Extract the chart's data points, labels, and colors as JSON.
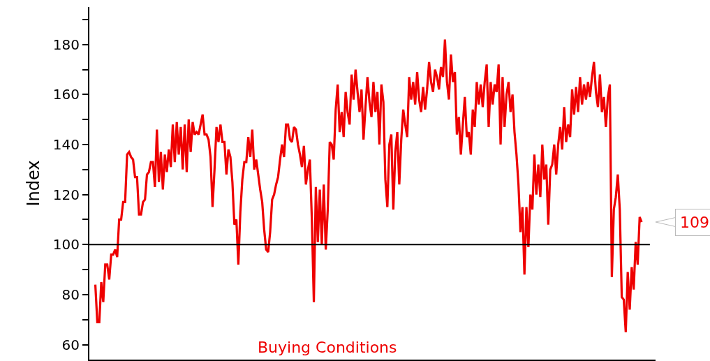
{
  "chart_data": {
    "type": "line",
    "ylabel": "Index",
    "ylim": [
      54,
      195
    ],
    "yticks": [
      {
        "value": 60,
        "label": "60"
      },
      {
        "value": 70,
        "label": null
      },
      {
        "value": 80,
        "label": "80"
      },
      {
        "value": 90,
        "label": null
      },
      {
        "value": 100,
        "label": "100"
      },
      {
        "value": 110,
        "label": null
      },
      {
        "value": 120,
        "label": "120"
      },
      {
        "value": 130,
        "label": null
      },
      {
        "value": 140,
        "label": "140"
      },
      {
        "value": 150,
        "label": null
      },
      {
        "value": 160,
        "label": "160"
      },
      {
        "value": 170,
        "label": null
      },
      {
        "value": 180,
        "label": "180"
      },
      {
        "value": 190,
        "label": null
      }
    ],
    "tick_labels": "y",
    "legend": false,
    "marker": "none",
    "line_style": "solid",
    "ref_lines": [
      {
        "axis": "y",
        "value": 100,
        "color": "#000000"
      }
    ],
    "annotations": [
      "109"
    ],
    "categories": [
      null,
      null,
      null,
      null,
      null,
      null,
      null,
      null,
      null,
      null,
      null,
      null,
      null,
      null,
      null,
      null,
      null,
      null,
      null,
      null,
      null,
      null,
      null,
      null,
      null,
      null,
      null,
      null,
      null,
      null,
      null,
      null,
      null,
      null,
      null,
      null,
      null,
      null,
      null,
      null,
      null,
      null,
      null,
      null,
      null,
      null,
      null,
      null,
      null,
      null,
      null,
      null,
      null,
      null,
      null,
      null,
      null,
      null,
      null,
      null,
      null,
      null,
      null,
      null,
      null,
      null,
      null,
      null,
      null,
      null,
      null,
      null,
      null,
      null,
      null,
      null,
      null,
      null,
      null,
      null,
      null,
      null,
      null,
      null,
      null,
      null,
      null,
      null,
      null,
      null,
      null,
      null,
      null,
      null,
      null,
      null,
      null,
      null,
      null,
      null,
      null,
      null,
      null,
      null,
      null,
      null,
      null,
      null,
      null,
      null,
      null,
      null,
      null,
      null,
      null,
      null,
      null,
      null,
      null,
      null,
      null,
      null,
      null,
      null,
      null,
      null,
      null,
      null,
      null,
      null,
      null,
      null,
      null,
      null,
      null,
      null,
      null,
      null,
      null,
      null,
      null,
      null,
      null,
      null,
      null,
      null,
      null,
      null,
      null,
      null,
      null,
      null,
      null,
      null,
      null,
      null,
      null,
      null,
      null,
      null,
      null,
      null,
      null,
      null,
      null,
      null,
      null,
      null,
      null,
      null,
      null,
      null,
      null,
      null,
      null,
      null,
      null,
      null,
      null,
      null,
      null,
      null,
      null,
      null,
      null,
      null,
      null,
      null,
      null,
      null,
      null,
      null,
      null,
      null,
      null,
      null,
      null,
      null,
      null,
      null,
      null,
      null,
      null,
      null,
      null,
      null,
      null,
      null,
      null,
      null,
      null,
      null,
      null,
      null,
      null,
      null,
      null,
      null,
      null,
      null,
      null,
      null,
      null,
      null,
      null,
      null,
      null,
      null,
      null,
      null,
      null,
      null,
      null,
      null,
      null,
      null,
      null,
      null,
      null,
      null,
      null,
      null,
      null,
      null,
      null,
      null,
      null,
      null,
      null,
      null,
      null,
      null,
      null,
      null,
      null,
      null,
      null,
      null,
      null,
      null,
      null,
      null,
      null,
      null,
      null,
      null,
      null,
      null,
      null,
      null,
      null,
      null,
      null,
      null,
      null,
      null
    ],
    "series": [
      {
        "name": "Buying Conditions",
        "color": "#ee0000",
        "values": [
          84,
          69,
          69,
          85,
          77,
          92,
          92,
          86,
          96,
          96,
          98,
          95,
          110,
          110,
          117,
          117,
          136,
          137,
          135,
          134,
          127,
          127,
          112,
          112,
          117,
          118,
          128,
          129,
          133,
          133,
          123,
          146,
          125,
          137,
          122,
          136,
          129,
          138,
          131,
          148,
          133,
          149,
          136,
          147,
          130,
          148,
          129,
          150,
          137,
          149,
          144,
          145,
          144,
          148,
          152,
          144,
          144,
          142,
          135,
          115,
          130,
          147,
          141,
          148,
          141,
          141,
          128,
          138,
          135,
          125,
          108,
          110,
          92,
          113,
          126,
          133,
          133,
          143,
          135,
          146,
          130,
          134,
          128,
          122,
          117,
          106,
          98,
          97,
          105,
          118,
          120,
          124,
          127,
          134,
          140,
          135,
          148,
          148,
          142,
          141,
          147,
          146,
          140,
          136,
          131,
          139.5,
          124,
          130,
          134,
          110,
          77,
          123,
          101,
          122,
          100,
          124,
          98,
          114,
          141,
          140,
          134,
          154,
          164,
          145,
          153,
          143,
          161,
          153,
          148,
          168,
          158,
          170,
          161,
          153,
          162,
          142,
          155,
          167,
          157,
          151,
          165,
          153,
          161,
          140,
          164,
          157,
          126,
          115,
          140,
          144,
          114,
          137,
          145,
          124,
          142,
          154,
          148,
          143,
          167,
          158,
          165,
          156,
          169,
          158,
          153,
          163,
          154,
          162,
          173,
          165,
          161,
          170,
          167,
          162,
          171,
          167,
          182,
          165,
          158,
          176,
          165,
          169,
          144,
          151,
          136,
          148,
          159,
          143,
          145,
          136,
          154,
          147,
          165,
          156,
          164,
          155,
          165,
          172,
          147,
          165,
          156,
          164,
          161,
          172,
          140,
          167,
          147,
          160,
          165,
          153,
          160,
          145,
          136,
          124,
          105,
          115,
          88,
          115,
          99,
          120,
          114,
          136,
          120,
          132,
          119,
          140,
          126,
          132,
          108,
          130,
          132,
          140,
          128,
          140,
          147,
          138,
          155,
          141,
          148,
          143,
          162,
          152,
          163,
          153,
          167,
          156,
          164,
          158,
          165,
          159,
          167,
          173,
          161,
          155,
          168,
          153,
          159,
          147,
          159,
          164,
          87,
          114,
          119,
          128,
          114,
          79,
          78,
          65,
          89,
          74,
          91,
          82,
          101,
          92,
          111,
          109
        ]
      }
    ]
  }
}
